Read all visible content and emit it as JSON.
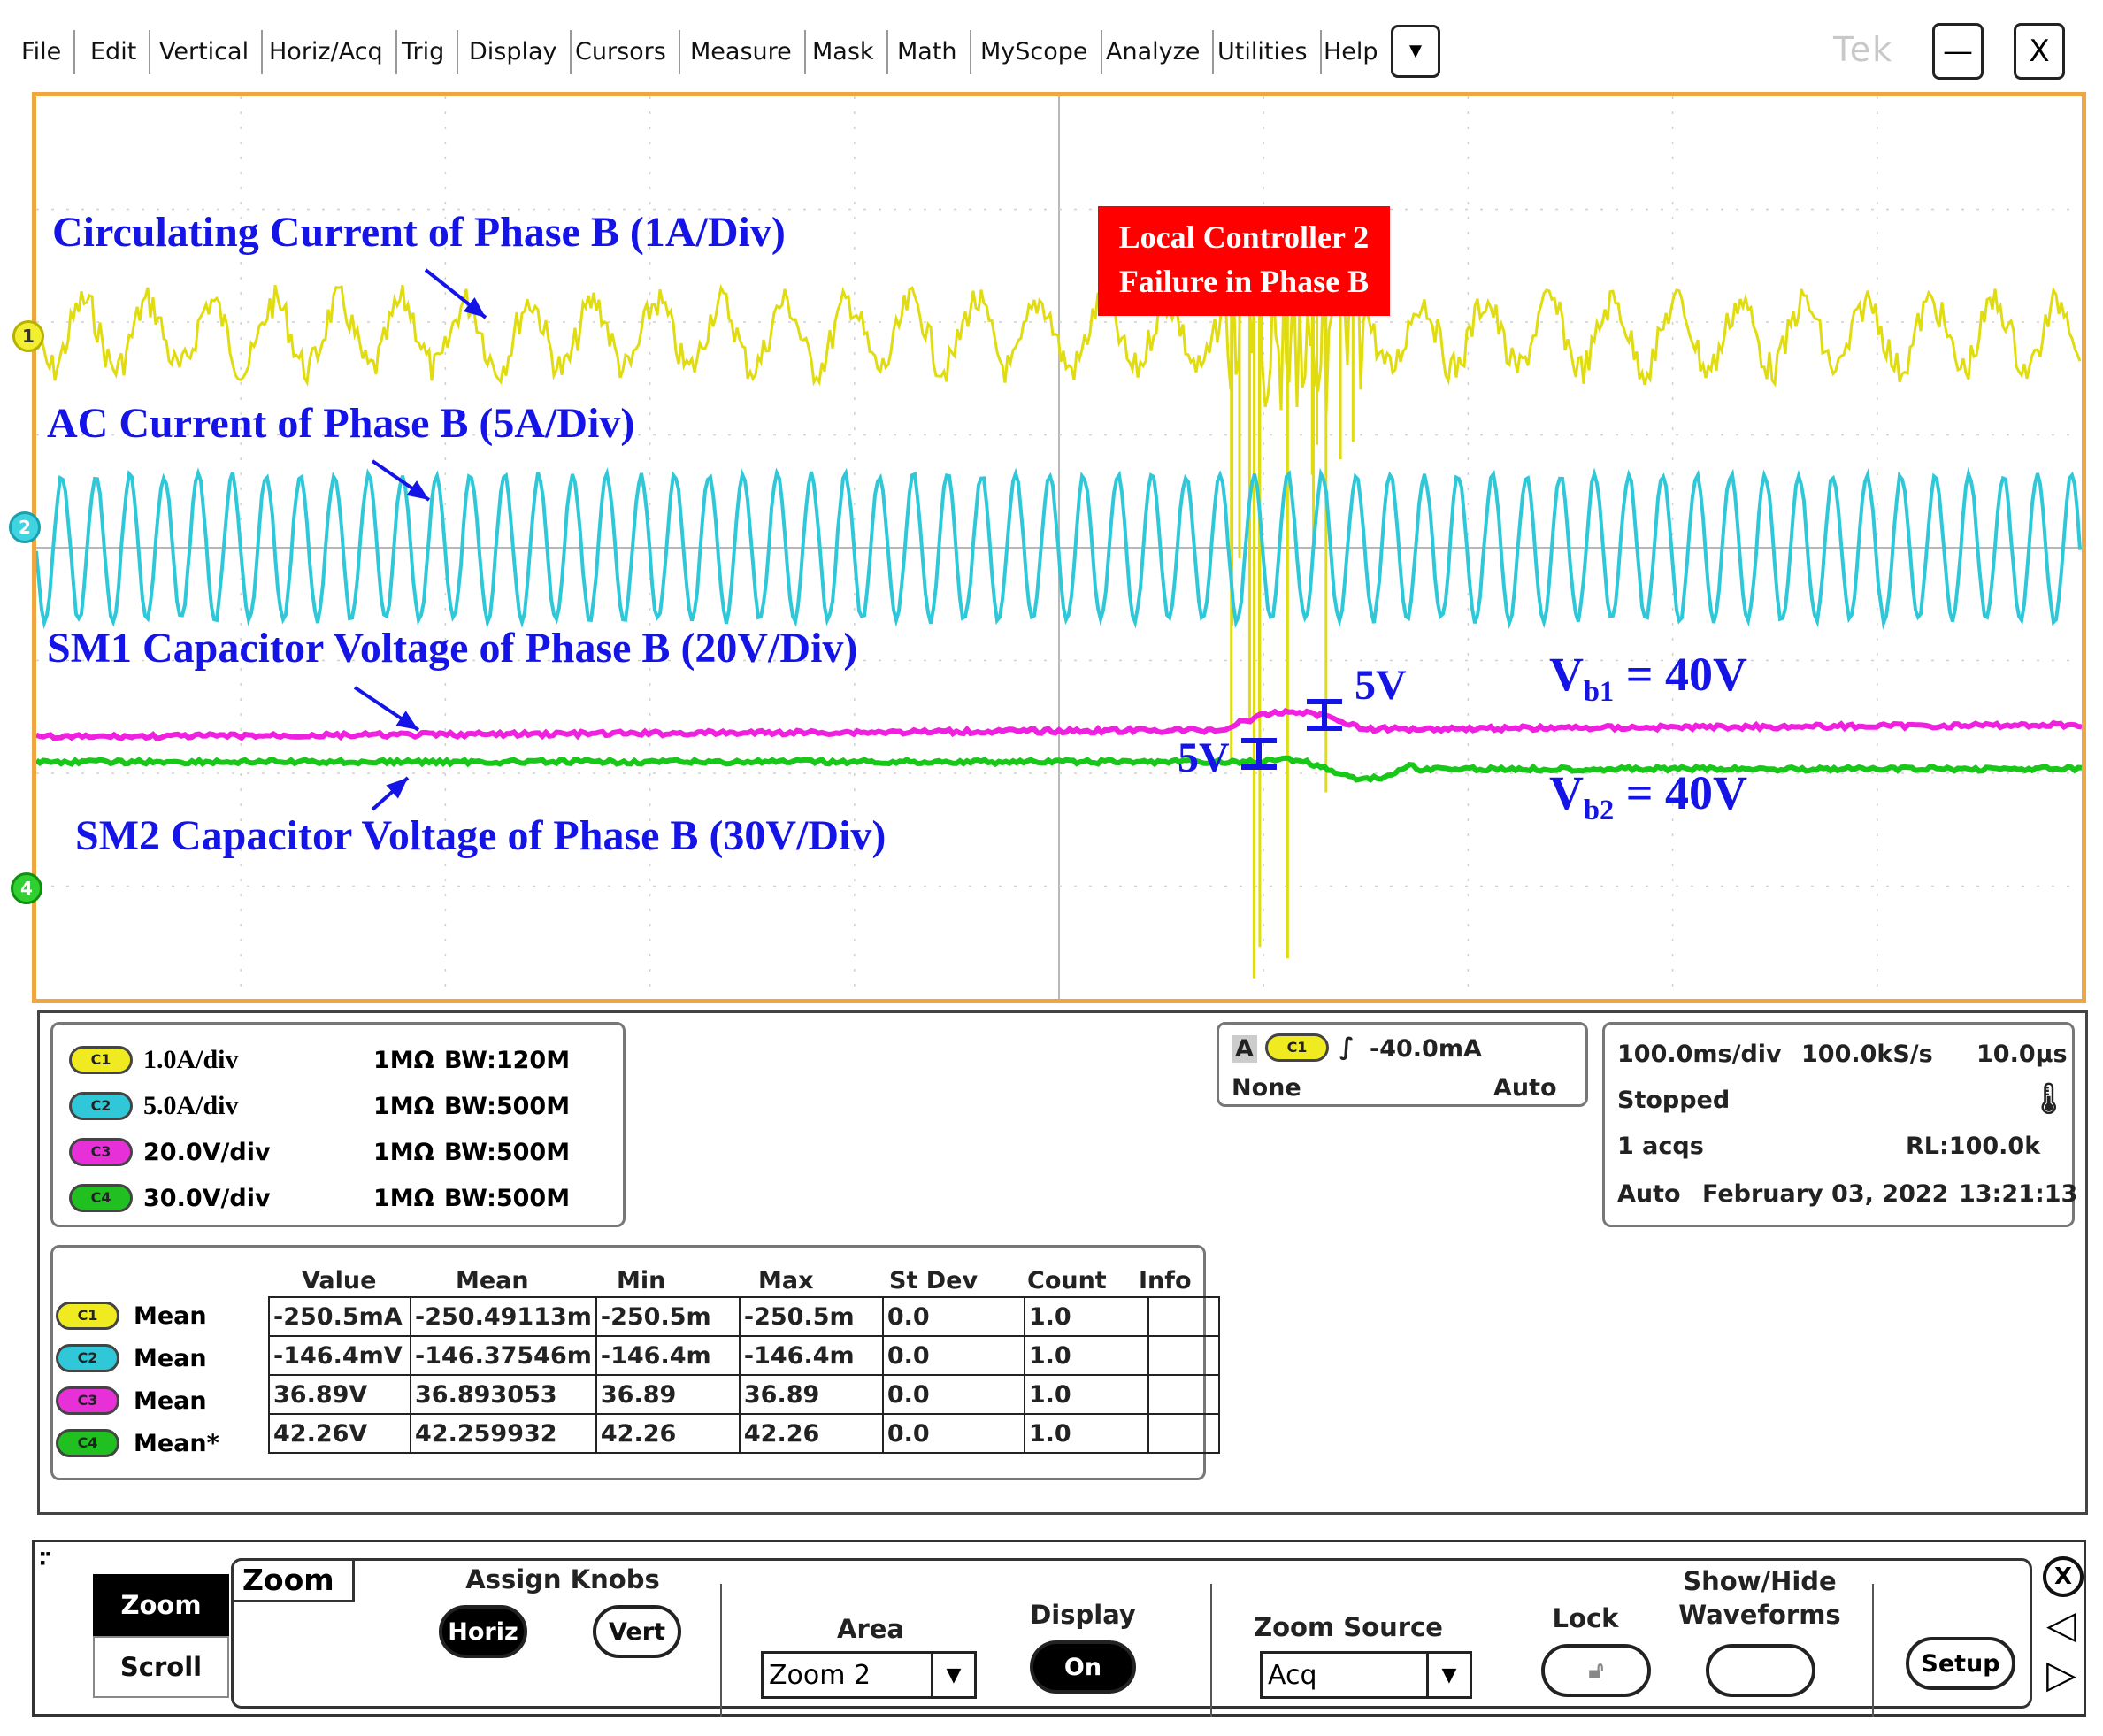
{
  "menu": {
    "items": [
      "File",
      "Edit",
      "Vertical",
      "Horiz/Acq",
      "Trig",
      "Display",
      "Cursors",
      "Measure",
      "Mask",
      "Math",
      "MyScope",
      "Analyze",
      "Utilities",
      "Help"
    ],
    "brand": "Tek",
    "minimize": "—",
    "close": "X"
  },
  "graticule": {
    "channel_markers": [
      "1",
      "2",
      "4"
    ],
    "annotations": {
      "circulating": "Circulating Current of Phase B (1A/Div)",
      "ac_current": "AC Current of Phase B (5A/Div)",
      "sm1": "SM1 Capacitor Voltage of Phase B (20V/Div)",
      "sm2": "SM2 Capacitor Voltage of Phase B (30V/Div)",
      "failure_line1": "Local Controller 2",
      "failure_line2": "Failure in Phase B",
      "delta_upper": "5V",
      "delta_lower": "5V",
      "vb1_base": "V",
      "vb1_sub": "b1",
      "vb1_value": " = 40V",
      "vb2_base": "V",
      "vb2_sub": "b2",
      "vb2_value": " = 40V"
    },
    "colors": {
      "ch1": "#e0dc10",
      "ch2": "#2ec8d8",
      "ch3": "#f020e0",
      "ch4": "#18c818",
      "border": "#f0a640",
      "annotation": "#1414e6",
      "failure_box": "#ff0000"
    }
  },
  "channels": [
    {
      "tag": "C1",
      "scale": "1.0A/div",
      "impedance": "1MΩ",
      "bw_label": "BW",
      "bw": ":120M",
      "color": "#e0dc10"
    },
    {
      "tag": "C2",
      "scale": "5.0A/div",
      "impedance": "1MΩ",
      "bw_label": "BW",
      "bw": ":500M",
      "color": "#2ec8d8"
    },
    {
      "tag": "C3",
      "scale": "20.0V/div",
      "impedance": "1MΩ",
      "bw_label": "BW",
      "bw": ":500M",
      "color": "#f020e0"
    },
    {
      "tag": "C4",
      "scale": "30.0V/div",
      "impedance": "1MΩ",
      "bw_label": "BW",
      "bw": ":500M",
      "color": "#18c818"
    }
  ],
  "trigger": {
    "mode_letter": "A",
    "source": "C1",
    "level": "-40.0mA",
    "coupling": "None",
    "mode": "Auto"
  },
  "acquisition": {
    "timebase": "100.0ms/div",
    "sample_rate": "100.0kS/s",
    "resolution": "10.0μs",
    "state": "Stopped",
    "acqs": "1 acqs",
    "record_length": "RL:100.0k",
    "mode": "Auto",
    "date": "February 03, 2022",
    "time": "13:21:13"
  },
  "measurements": {
    "headers": [
      "Value",
      "Mean",
      "Min",
      "Max",
      "St Dev",
      "Count",
      "Info"
    ],
    "rows": [
      {
        "tag": "C1",
        "label": "Mean",
        "values": [
          "-250.5mA",
          "-250.49113m",
          "-250.5m",
          "-250.5m",
          "0.0",
          "1.0",
          ""
        ]
      },
      {
        "tag": "C2",
        "label": "Mean",
        "values": [
          "-146.4mV",
          "-146.37546m",
          "-146.4m",
          "-146.4m",
          "0.0",
          "1.0",
          ""
        ]
      },
      {
        "tag": "C3",
        "label": "Mean",
        "values": [
          "36.89V",
          "36.893053",
          "36.89",
          "36.89",
          "0.0",
          "1.0",
          ""
        ]
      },
      {
        "tag": "C4",
        "label": "Mean*",
        "values": [
          "42.26V",
          "42.259932",
          "42.26",
          "42.26",
          "0.0",
          "1.0",
          ""
        ]
      }
    ]
  },
  "control": {
    "side_tabs": [
      "Zoom",
      "Scroll"
    ],
    "panel_title": "Zoom",
    "assign_knobs": "Assign Knobs",
    "horiz": "Horiz",
    "vert": "Vert",
    "area_label": "Area",
    "area_value": "Zoom 2",
    "display_label": "Display",
    "display_value": "On",
    "zoom_source_label": "Zoom Source",
    "zoom_source_value": "Acq",
    "lock_label": "Lock",
    "show_hide_line1": "Show/Hide",
    "show_hide_line2": "Waveforms",
    "setup": "Setup",
    "close": "X",
    "prev": "◁",
    "next": "▷"
  }
}
